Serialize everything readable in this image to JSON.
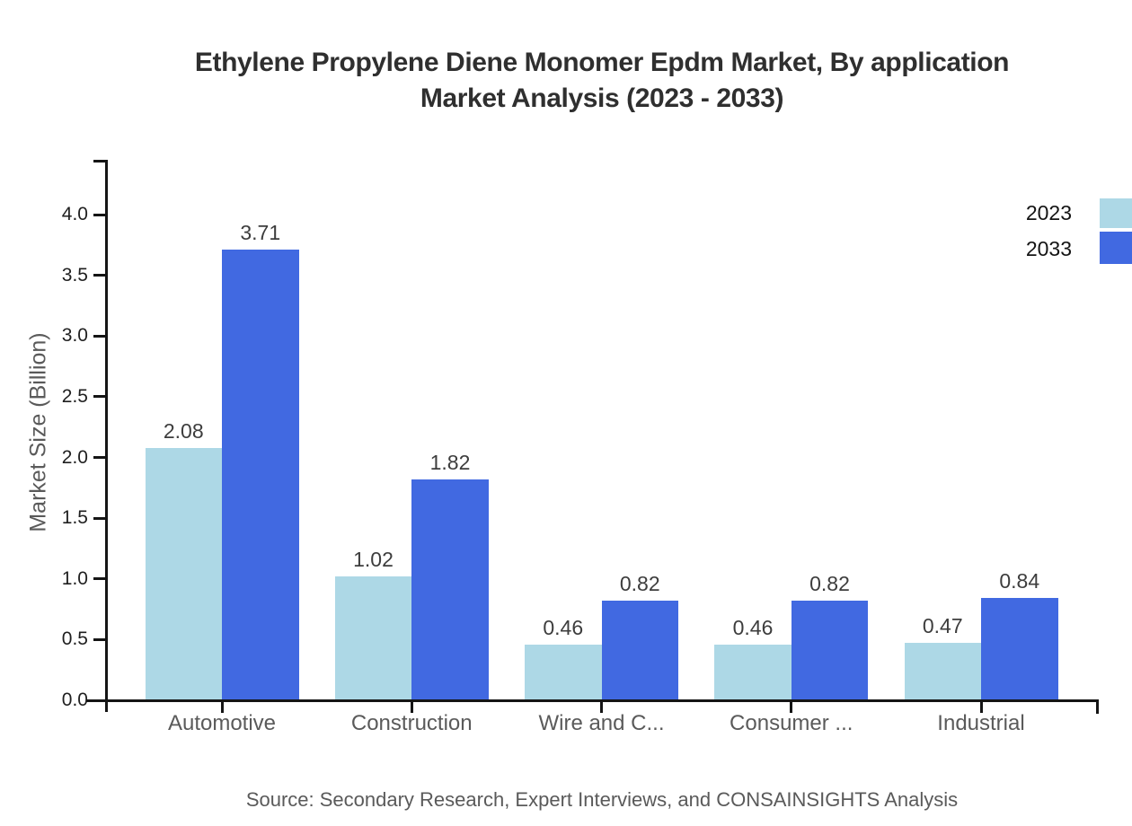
{
  "header": {
    "title_line1": "Ethylene Propylene Diene Monomer Epdm Market, By application",
    "title_line2": "Market Analysis (2023 - 2033)"
  },
  "footer": {
    "source": "Source: Secondary Research, Expert Interviews, and CONSAINSIGHTS Analysis"
  },
  "legend": {
    "position": "top-right-outside",
    "items": [
      {
        "label": "2023",
        "color": "#ADD8E6"
      },
      {
        "label": "2033",
        "color": "#4169E1"
      }
    ]
  },
  "colors": {
    "axis": "#151515",
    "series_2023": "#ADD8E6",
    "series_2033": "#4169E1",
    "background": "#FFFFFF"
  },
  "chart_data": {
    "type": "bar",
    "title": "Ethylene Propylene Diene Monomer Epdm Market, By application Market Analysis (2023 - 2033)",
    "xlabel": "",
    "ylabel": "Market Size (Billion)",
    "categories": [
      "Automotive",
      "Construction",
      "Wire and C...",
      "Consumer ...",
      "Industrial"
    ],
    "series": [
      {
        "name": "2023",
        "color": "#ADD8E6",
        "values": [
          2.08,
          1.02,
          0.46,
          0.46,
          0.47
        ]
      },
      {
        "name": "2033",
        "color": "#4169E1",
        "values": [
          3.71,
          1.82,
          0.82,
          0.82,
          0.84
        ]
      }
    ],
    "value_labels": [
      "2.08",
      "3.71",
      "1.02",
      "1.82",
      "0.46",
      "0.82",
      "0.46",
      "0.82",
      "0.47",
      "0.84"
    ],
    "ylim": [
      0.0,
      4.45
    ],
    "yticks": [
      "0.0",
      "0.5",
      "1.0",
      "1.5",
      "2.0",
      "2.5",
      "3.0",
      "3.5",
      "4.0"
    ],
    "grid": false,
    "legend_position": "top-right-outside"
  }
}
